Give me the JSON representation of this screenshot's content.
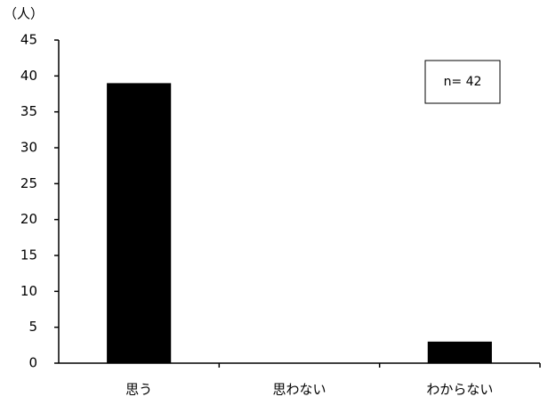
{
  "chart_data": {
    "type": "bar",
    "y_label": "（人）",
    "annotation": "n= 42",
    "categories": [
      "思う",
      "思わない",
      "わからない"
    ],
    "values": [
      39,
      0,
      3
    ],
    "color": "#000000",
    "ylim": [
      0,
      45
    ],
    "yticks": [
      0,
      5,
      10,
      15,
      20,
      25,
      30,
      35,
      40,
      45
    ],
    "grid": false
  }
}
